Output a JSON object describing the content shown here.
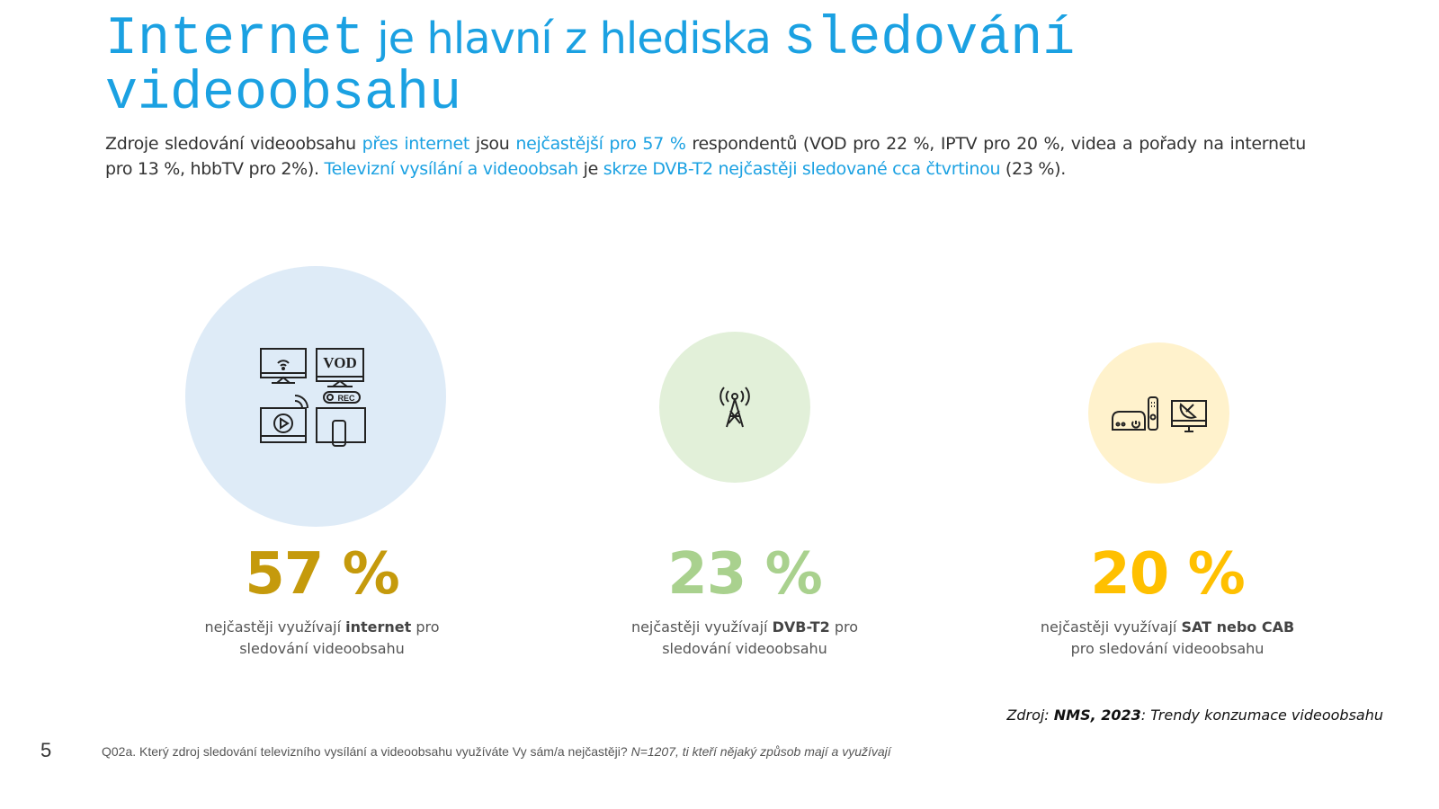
{
  "title": {
    "part1": "Internet",
    "part2": " je hlavní z hlediska ",
    "part3": "sledování",
    "part4": "videoobsahu"
  },
  "lead": {
    "t1": "Zdroje sledování videoobsahu ",
    "h1": "přes internet",
    "t2": " jsou ",
    "h2": "nejčastější pro 57 %",
    "t3": " respondentů (VOD pro 22 %, IPTV pro 20 %, videa a pořady na internetu pro 13 %, hbbTV pro 2%). ",
    "h3": "Televizní vysílání a videoobsah",
    "t4": " je ",
    "h4": "skrze DVB-T2 nejčastěji sledované cca čtvrtinou",
    "t5": " (23 %)."
  },
  "stats": [
    {
      "value": "57 %",
      "pre": "nejčastěji využívají ",
      "bold": "internet",
      "post": " pro",
      "line2": "sledování videoobsahu",
      "color": "#c59a0c",
      "circle": "#deebf7",
      "icon": "tv-wifi-vod-rec-icons"
    },
    {
      "value": "23 %",
      "pre": "nejčastěji využívají ",
      "bold": "DVB-T2",
      "post": " pro",
      "line2": "sledování videoobsahu",
      "color": "#a9d18e",
      "circle": "#e2f0d9",
      "icon": "antenna-tower-icon"
    },
    {
      "value": "20 %",
      "pre": "nejčastěji využívají ",
      "bold": "SAT nebo CAB",
      "post": "",
      "line2": "pro sledování videoobsahu",
      "color": "#ffc000",
      "circle": "#fff2cc",
      "icon": "settop-box-satellite-icon"
    }
  ],
  "source": {
    "prefix": "Zdroj: ",
    "bold": "NMS, 2023",
    "suffix": ": Trendy konzumace videoobsahu"
  },
  "page_number": "5",
  "footnote": {
    "question": "Q02a. Který zdroj sledování televizního vysílání a videoobsahu využíváte Vy sám/a nejčastěji? ",
    "base": "N=1207, ti kteří nějaký způsob mají a využívají"
  },
  "icon_labels": {
    "vod": "VOD",
    "rec": "REC"
  }
}
